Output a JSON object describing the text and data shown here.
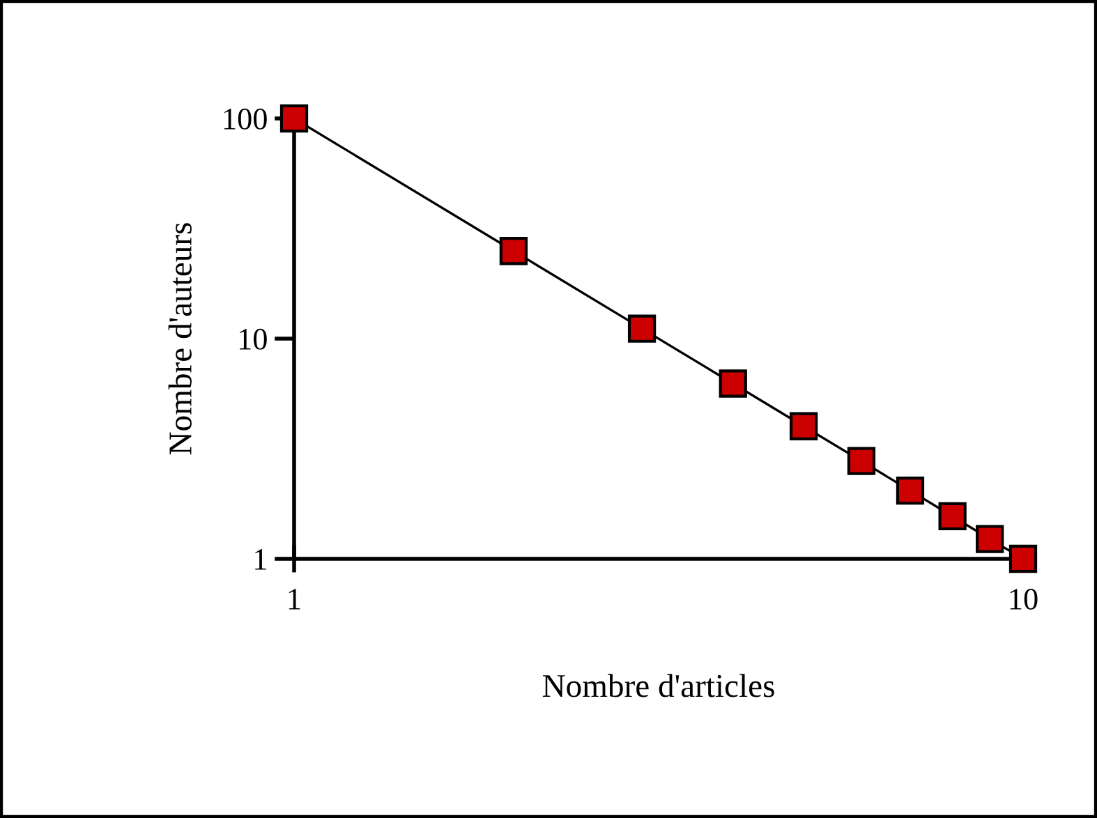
{
  "chart_data": {
    "type": "line",
    "xlabel": "Nombre d'articles",
    "ylabel": "Nombre d'auteurs",
    "x": [
      1,
      2,
      3,
      4,
      5,
      6,
      7,
      8,
      9,
      10
    ],
    "series": [
      {
        "color": "#cc0000",
        "values": [
          100,
          25,
          11.1,
          6.25,
          4,
          2.78,
          2.04,
          1.56,
          1.23,
          1
        ]
      }
    ],
    "log": "xy",
    "xlim": [
      1,
      10
    ],
    "ylim": [
      1,
      100
    ],
    "xticks": [
      1,
      10
    ],
    "yticks": [
      1,
      10,
      100
    ],
    "grid": false,
    "legend": false,
    "marker": "square",
    "line_style": "solid"
  }
}
